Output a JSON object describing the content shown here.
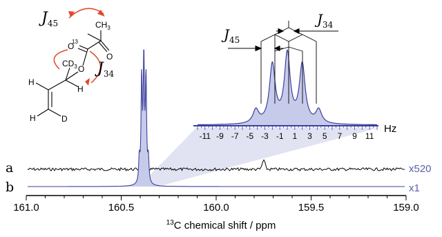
{
  "chart_data": {
    "type": "line",
    "xlabel_iso": "13",
    "xlabel": "C chemical shift / ppm",
    "xlim": [
      161.0,
      159.0
    ],
    "x_ticks": [
      "161.0",
      "160.5",
      "160.0",
      "159.5",
      "159.0"
    ],
    "series": [
      {
        "name": "a",
        "scale": "x520",
        "color": "#000000",
        "x": [
          159.75
        ],
        "y": [
          1.0
        ],
        "note_peak_shift_ppm": 159.75
      },
      {
        "name": "b",
        "scale": "x1",
        "color": "#3b3f9e",
        "x": [
          160.37
        ],
        "y": [
          1.0
        ],
        "note_peak_shift_ppm": 160.37
      }
    ],
    "inset": {
      "unit": "Hz",
      "x_ticks": [
        "-11",
        "-9",
        "-7",
        "-5",
        "-3",
        "-1",
        "1",
        "3",
        "5",
        "7",
        "9",
        "11"
      ],
      "peaks_hz": [
        -4.2,
        -2.0,
        0.0,
        2.0,
        4.2
      ],
      "peak_heights": [
        0.18,
        0.78,
        0.92,
        0.78,
        0.18
      ],
      "coupling_labels": [
        {
          "J": "J",
          "sub": "45"
        },
        {
          "J": "J",
          "sub": "34"
        }
      ]
    }
  },
  "molecule": {
    "labels": {
      "methyl": "CH",
      "methyl_sub": "3",
      "carbonyl_o1": "O",
      "carbonyl_o2": "O",
      "iso13": "13",
      "iso_c": "C",
      "ester_o": "O",
      "cd3": "CD",
      "cd3_sub": "3",
      "h1": "H",
      "h2": "H",
      "h3": "H",
      "d": "D"
    },
    "couplings": [
      {
        "J": "J",
        "sub": "45"
      },
      {
        "J": "J",
        "sub": "34"
      }
    ],
    "arrow_color": "#e0482a"
  }
}
